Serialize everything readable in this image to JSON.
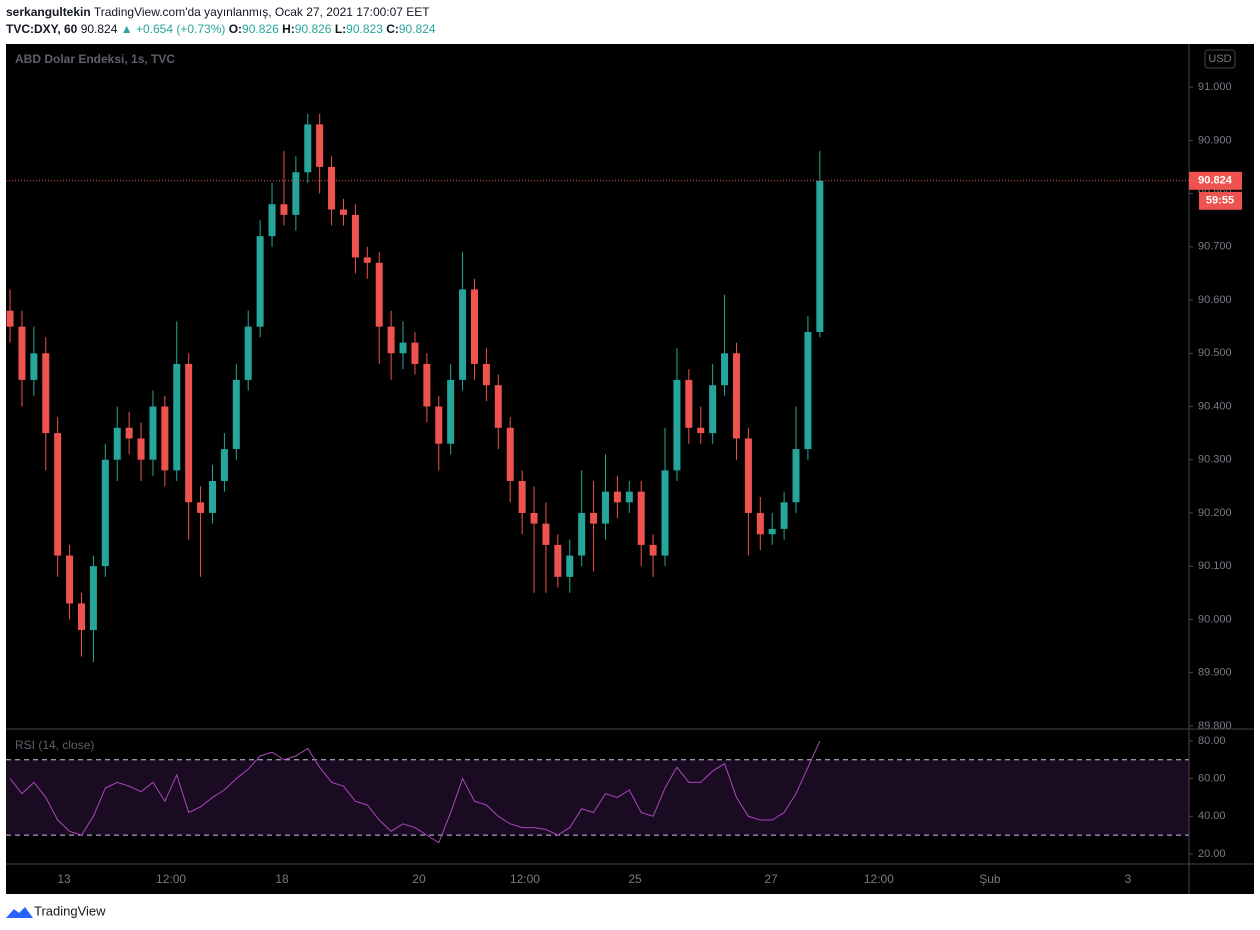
{
  "header": {
    "author": "serkangultekin",
    "published": "TradingView.com'da yayınlanmış, Ocak 27, 2021 17:00:07 EET",
    "symbol": "TVC:DXY, 60",
    "last": "90.824",
    "change": "▲ +0.654 (+0.73%)",
    "ohlc": [
      {
        "label": "O:",
        "value": "90.826"
      },
      {
        "label": "H:",
        "value": "90.826"
      },
      {
        "label": "L:",
        "value": "90.823"
      },
      {
        "label": "C:",
        "value": "90.824"
      }
    ]
  },
  "chart_data": [
    {
      "type": "candlestick",
      "title": "ABD Dolar Endeksi, 1s, TVC",
      "currency": "USD",
      "up_color": "#26a69a",
      "down_color": "#ef5350",
      "countdown": "59:55",
      "xlim": [
        -0.34,
        99
      ],
      "ylim": [
        89.796,
        91.081
      ],
      "xticks": [
        {
          "value": 4.53,
          "label": "13"
        },
        {
          "value": 13.52,
          "label": "12:00"
        },
        {
          "value": 22.84,
          "label": "18"
        },
        {
          "value": 34.34,
          "label": "20"
        },
        {
          "value": 43.24,
          "label": "12:00"
        },
        {
          "value": 52.48,
          "label": "25"
        },
        {
          "value": 63.9,
          "label": "27"
        },
        {
          "value": 72.96,
          "label": "12:00"
        },
        {
          "value": 82.28,
          "label": "Şub"
        },
        {
          "value": 93.87,
          "label": "3"
        }
      ],
      "yticks": [
        {
          "value": 91.0,
          "label": "91.000"
        },
        {
          "value": 90.9,
          "label": "90.900"
        },
        {
          "value": 90.8,
          "label": "90.800"
        },
        {
          "value": 90.7,
          "label": "90.700"
        },
        {
          "value": 90.6,
          "label": "90.600"
        },
        {
          "value": 90.5,
          "label": "90.500"
        },
        {
          "value": 90.4,
          "label": "90.400"
        },
        {
          "value": 90.3,
          "label": "90.300"
        },
        {
          "value": 90.2,
          "label": "90.200"
        },
        {
          "value": 90.1,
          "label": "90.100"
        },
        {
          "value": 90.0,
          "label": "90.000"
        },
        {
          "value": 89.9,
          "label": "89.900"
        },
        {
          "value": 89.8,
          "label": "89.800"
        }
      ],
      "open": [
        90.58,
        90.55,
        90.45,
        90.5,
        90.35,
        90.12,
        90.03,
        89.98,
        90.1,
        90.3,
        90.36,
        90.34,
        90.3,
        90.4,
        90.28,
        90.48,
        90.22,
        90.2,
        90.26,
        90.32,
        90.45,
        90.55,
        90.72,
        90.78,
        90.76,
        90.84,
        90.93,
        90.85,
        90.77,
        90.76,
        90.68,
        90.67,
        90.55,
        90.5,
        90.52,
        90.48,
        90.4,
        90.33,
        90.45,
        90.62,
        90.48,
        90.44,
        90.36,
        90.26,
        90.2,
        90.18,
        90.14,
        90.08,
        90.12,
        90.2,
        90.18,
        90.24,
        90.22,
        90.24,
        90.14,
        90.12,
        90.28,
        90.45,
        90.36,
        90.35,
        90.44,
        90.5,
        90.34,
        90.2,
        90.16,
        90.17,
        90.22,
        90.32,
        90.54
      ],
      "high": [
        90.62,
        90.58,
        90.55,
        90.53,
        90.38,
        90.14,
        90.05,
        90.12,
        90.33,
        90.4,
        90.39,
        90.37,
        90.43,
        90.42,
        90.56,
        90.5,
        90.25,
        90.29,
        90.35,
        90.48,
        90.58,
        90.75,
        90.82,
        90.88,
        90.87,
        90.95,
        90.95,
        90.87,
        90.79,
        90.78,
        90.7,
        90.69,
        90.58,
        90.56,
        90.54,
        90.5,
        90.42,
        90.48,
        90.69,
        90.64,
        90.51,
        90.46,
        90.38,
        90.28,
        90.25,
        90.22,
        90.16,
        90.15,
        90.28,
        90.26,
        90.31,
        90.27,
        90.26,
        90.26,
        90.16,
        90.36,
        90.51,
        90.47,
        90.4,
        90.48,
        90.61,
        90.52,
        90.36,
        90.23,
        90.2,
        90.24,
        90.4,
        90.57,
        90.88
      ],
      "low": [
        90.52,
        90.4,
        90.42,
        90.28,
        90.08,
        90.0,
        89.93,
        89.92,
        90.08,
        90.26,
        90.31,
        90.26,
        90.27,
        90.25,
        90.26,
        90.15,
        90.08,
        90.18,
        90.24,
        90.3,
        90.43,
        90.53,
        90.7,
        90.74,
        90.73,
        90.82,
        90.8,
        90.74,
        90.74,
        90.65,
        90.64,
        90.48,
        90.45,
        90.47,
        90.46,
        90.37,
        90.28,
        90.31,
        90.43,
        90.45,
        90.41,
        90.32,
        90.22,
        90.16,
        90.05,
        90.05,
        90.06,
        90.05,
        90.1,
        90.09,
        90.15,
        90.19,
        90.2,
        90.1,
        90.08,
        90.1,
        90.26,
        90.33,
        90.33,
        90.33,
        90.42,
        90.3,
        90.12,
        90.13,
        90.14,
        90.15,
        90.2,
        90.3,
        90.53
      ],
      "close": [
        90.55,
        90.45,
        90.5,
        90.35,
        90.12,
        90.03,
        89.98,
        90.1,
        90.3,
        90.36,
        90.34,
        90.3,
        90.4,
        90.28,
        90.48,
        90.22,
        90.2,
        90.26,
        90.32,
        90.45,
        90.55,
        90.72,
        90.78,
        90.76,
        90.84,
        90.93,
        90.85,
        90.77,
        90.76,
        90.68,
        90.67,
        90.55,
        90.5,
        90.52,
        90.48,
        90.4,
        90.33,
        90.45,
        90.62,
        90.48,
        90.44,
        90.36,
        90.26,
        90.2,
        90.18,
        90.14,
        90.08,
        90.12,
        90.2,
        90.18,
        90.24,
        90.22,
        90.24,
        90.14,
        90.12,
        90.28,
        90.45,
        90.36,
        90.35,
        90.44,
        90.5,
        90.34,
        90.2,
        90.16,
        90.17,
        90.22,
        90.32,
        90.54,
        90.824
      ]
    },
    {
      "type": "line",
      "title": "RSI (14, close)",
      "color": "#ab47bc",
      "band": [
        30,
        70
      ],
      "band_color": "#1a0b22",
      "ylim": [
        15.2,
        85.8
      ],
      "yticks": [
        {
          "value": 80,
          "label": "80.00"
        },
        {
          "value": 60,
          "label": "60.00"
        },
        {
          "value": 40,
          "label": "40.00"
        },
        {
          "value": 20,
          "label": "20.00"
        }
      ],
      "values": [
        60,
        52,
        58,
        50,
        38,
        32,
        30,
        40,
        55,
        58,
        56,
        53,
        58,
        48,
        62,
        42,
        45,
        50,
        54,
        60,
        65,
        72,
        74,
        70,
        72,
        76,
        66,
        58,
        56,
        48,
        46,
        38,
        32,
        36,
        34,
        30,
        26,
        42,
        60,
        48,
        46,
        40,
        36,
        34,
        34,
        33,
        30,
        34,
        44,
        42,
        52,
        50,
        54,
        42,
        40,
        55,
        66,
        58,
        58,
        64,
        68,
        50,
        40,
        38,
        38,
        42,
        52,
        66,
        80
      ]
    }
  ]
}
